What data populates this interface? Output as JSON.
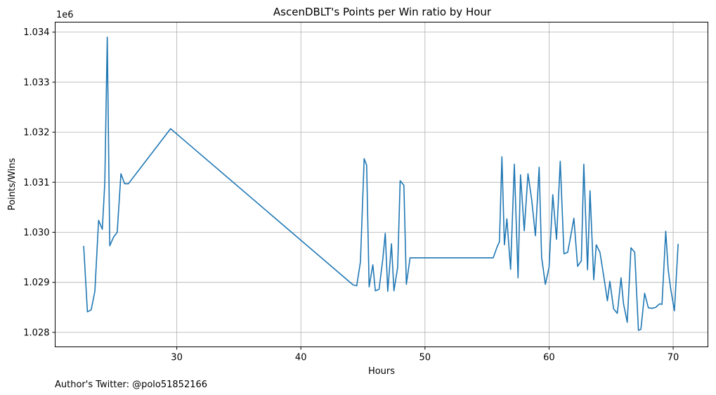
{
  "chart_data": {
    "type": "line",
    "title": "AscenDBLT's Points per Win ratio by Hour",
    "xlabel": "Hours",
    "ylabel": "Points/Wins",
    "y_offset_label": "1e6",
    "footer": "Author's Twitter: @polo51852166",
    "xlim": [
      20.2,
      72.8
    ],
    "ylim": [
      1.02771,
      1.0342
    ],
    "x_ticks": [
      30,
      40,
      50,
      60,
      70
    ],
    "x_tick_labels": [
      "30",
      "40",
      "50",
      "60",
      "70"
    ],
    "y_ticks": [
      1.028,
      1.029,
      1.03,
      1.031,
      1.032,
      1.033,
      1.034
    ],
    "y_tick_labels": [
      "1.028",
      "1.029",
      "1.030",
      "1.031",
      "1.032",
      "1.033",
      "1.034"
    ],
    "grid": true,
    "colors": {
      "line": "#1f77b4",
      "grid": "#b0b0b0",
      "axes": "#000000"
    },
    "series": [
      {
        "x": [
          22.5,
          22.8,
          23.1,
          23.4,
          23.7,
          24.0,
          24.2,
          24.4,
          24.6,
          24.9,
          25.2,
          25.5,
          25.8,
          26.1,
          29.5,
          44.2,
          44.5,
          44.8,
          45.1,
          45.3,
          45.5,
          45.8,
          46.0,
          46.3,
          46.6,
          46.8,
          47.0,
          47.3,
          47.5,
          47.8,
          48.0,
          48.3,
          48.5,
          48.8,
          55.5,
          55.8,
          56.0,
          56.2,
          56.4,
          56.6,
          56.9,
          57.2,
          57.5,
          57.7,
          58.0,
          58.3,
          58.6,
          58.9,
          59.2,
          59.4,
          59.7,
          60.0,
          60.3,
          60.6,
          60.9,
          61.2,
          61.5,
          61.8,
          62.0,
          62.3,
          62.6,
          62.8,
          63.1,
          63.3,
          63.6,
          63.8,
          64.1,
          64.4,
          64.7,
          64.9,
          65.2,
          65.5,
          65.8,
          66.0,
          66.3,
          66.6,
          66.9,
          67.2,
          67.4,
          67.7,
          68.0,
          68.3,
          68.6,
          68.9,
          69.1,
          69.4,
          69.6,
          69.8,
          70.1,
          70.4
        ],
        "y": [
          1.02972,
          1.02841,
          1.02845,
          1.02882,
          1.03024,
          1.03006,
          1.03099,
          1.0339,
          1.02973,
          1.0299,
          1.03,
          1.03117,
          1.03097,
          1.03097,
          1.03207,
          1.02895,
          1.02893,
          1.02941,
          1.03147,
          1.03134,
          1.02891,
          1.02935,
          1.02883,
          1.02886,
          1.02946,
          1.02998,
          1.02882,
          1.02977,
          1.02883,
          1.0293,
          1.03103,
          1.03094,
          1.02896,
          1.02949,
          1.02949,
          1.0297,
          1.02981,
          1.03151,
          1.02975,
          1.03027,
          1.02926,
          1.03136,
          1.02909,
          1.03115,
          1.03003,
          1.03117,
          1.03065,
          1.02993,
          1.0313,
          1.0295,
          1.02896,
          1.0293,
          1.03075,
          1.02986,
          1.03142,
          1.02957,
          1.0296,
          1.03,
          1.03028,
          1.02932,
          1.02943,
          1.03136,
          1.02925,
          1.03083,
          1.02905,
          1.02975,
          1.0296,
          1.02913,
          1.02863,
          1.02902,
          1.02847,
          1.02838,
          1.02909,
          1.02857,
          1.0282,
          1.02969,
          1.0296,
          1.02804,
          1.02806,
          1.02878,
          1.02849,
          1.02848,
          1.0285,
          1.02857,
          1.02856,
          1.03002,
          1.02925,
          1.02887,
          1.02843,
          1.02976
        ]
      }
    ]
  }
}
